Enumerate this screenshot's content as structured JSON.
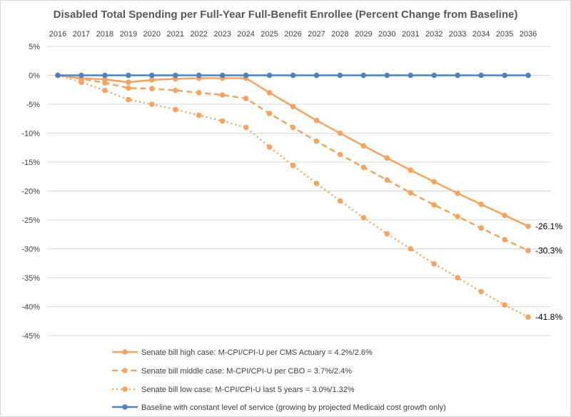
{
  "chart_data": {
    "type": "line",
    "title": "Disabled Total Spending per Full-Year Full-Benefit Enrollee (Percent Change from Baseline)",
    "xlabel": "",
    "ylabel": "",
    "x": [
      2016,
      2017,
      2018,
      2019,
      2020,
      2021,
      2022,
      2023,
      2024,
      2025,
      2026,
      2027,
      2028,
      2029,
      2030,
      2031,
      2032,
      2033,
      2034,
      2035,
      2036
    ],
    "x_tick_labels": [
      "2016",
      "2017",
      "2018",
      "2019",
      "2020",
      "2021",
      "2022",
      "2023",
      "2024",
      "2025",
      "2026",
      "2027",
      "2028",
      "2029",
      "2030",
      "2031",
      "2032",
      "2033",
      "2034",
      "2035",
      "2036"
    ],
    "x_axis_position": "top",
    "ylim": [
      -45,
      5
    ],
    "y_ticks": [
      5,
      0,
      -5,
      -10,
      -15,
      -20,
      -25,
      -30,
      -35,
      -40,
      -45
    ],
    "y_tick_labels": [
      "5%",
      "0%",
      "-5%",
      "-10%",
      "-15%",
      "-20%",
      "-25%",
      "-30%",
      "-35%",
      "-40%",
      "-45%"
    ],
    "grid": true,
    "legend_position": "bottom",
    "series": [
      {
        "name": "Senate bill high case: M-CPI/CPI-U per CMS Actuary = 4.2%/2.6%",
        "color": "#F4A460",
        "dash": "solid",
        "values": [
          0,
          -0.5,
          -0.7,
          -1.2,
          -0.8,
          -0.6,
          -0.5,
          -0.5,
          -0.5,
          -3.0,
          -5.4,
          -7.8,
          -10.0,
          -12.2,
          -14.3,
          -16.4,
          -18.4,
          -20.4,
          -22.3,
          -24.2,
          -26.1
        ],
        "end_label": "-26.1%"
      },
      {
        "name": "Senate bill middle case: M-CPI/CPI-U per CBO = 3.7%/2.4%",
        "color": "#F4A460",
        "dash": "dashed",
        "values": [
          0,
          -0.6,
          -1.3,
          -2.2,
          -2.3,
          -2.6,
          -3.0,
          -3.4,
          -4.0,
          -6.6,
          -9.0,
          -11.4,
          -13.7,
          -15.9,
          -18.1,
          -20.3,
          -22.4,
          -24.4,
          -26.4,
          -28.4,
          -30.3
        ],
        "end_label": "-30.3%"
      },
      {
        "name": "Senate bill low case: M-CPI/CPI-U last 5 years = 3.0%/1.32%",
        "color": "#F4A460",
        "dash": "dotted",
        "values": [
          0,
          -1.2,
          -2.6,
          -4.2,
          -5.0,
          -5.9,
          -6.9,
          -7.9,
          -9.0,
          -12.4,
          -15.6,
          -18.7,
          -21.7,
          -24.6,
          -27.4,
          -30.0,
          -32.6,
          -35.0,
          -37.4,
          -39.7,
          -41.8
        ],
        "end_label": "-41.8%"
      },
      {
        "name": "Baseline with constant level of service (growing by projected Medicaid cost growth only)",
        "color": "#4F81BD",
        "dash": "solid",
        "values": [
          0,
          0,
          0,
          0,
          0,
          0,
          0,
          0,
          0,
          0,
          0,
          0,
          0,
          0,
          0,
          0,
          0,
          0,
          0,
          0,
          0
        ],
        "end_label": ""
      }
    ],
    "colors": {
      "orange": "#F4A460",
      "blue": "#4F81BD",
      "grid": "#d9d9d9",
      "text": "#404040"
    }
  }
}
